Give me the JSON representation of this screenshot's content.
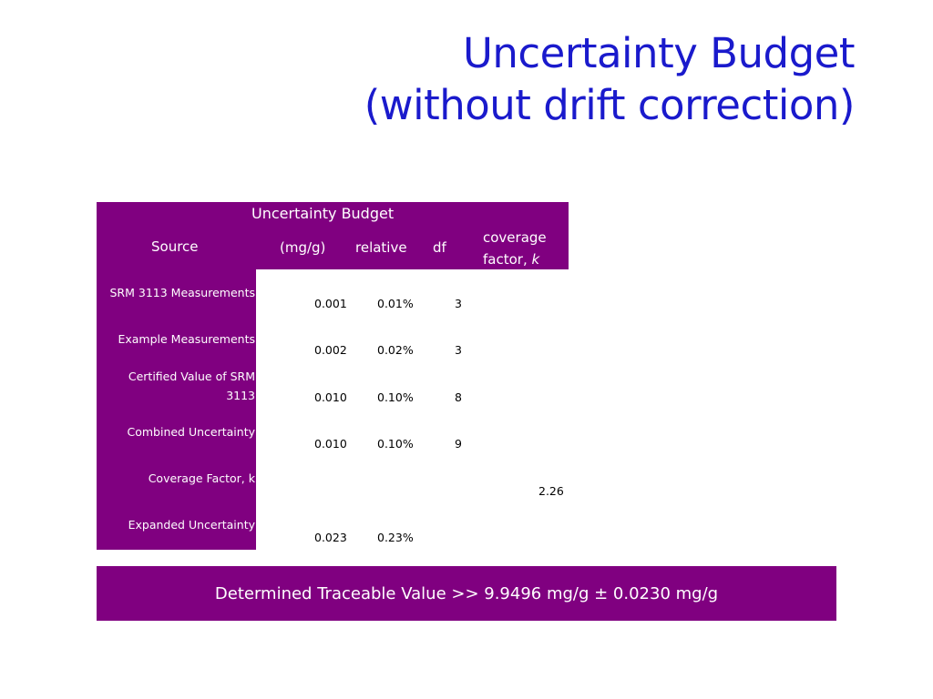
{
  "title": {
    "line1": "Uncertainty Budget",
    "line2": "(without drift correction)"
  },
  "table": {
    "caption": "Uncertainty Budget",
    "headers": {
      "source": "Source",
      "mg_g": "(mg/g)",
      "relative": "relative",
      "df": "df",
      "coverage_line1": "coverage",
      "coverage_line2": "factor, ",
      "coverage_k": "k"
    },
    "rows": [
      {
        "source": "SRM 3113 Measurements",
        "mg_g": "0.001",
        "relative": "0.01%",
        "df": "3",
        "coverage": ""
      },
      {
        "source": "Example Measurements",
        "mg_g": "0.002",
        "relative": "0.02%",
        "df": "3",
        "coverage": ""
      },
      {
        "source": "Certified Value of SRM 3113",
        "mg_g": "0.010",
        "relative": "0.10%",
        "df": "8",
        "coverage": ""
      },
      {
        "source": "Combined Uncertainty",
        "mg_g": "0.010",
        "relative": "0.10%",
        "df": "9",
        "coverage": ""
      },
      {
        "source": "Coverage Factor, k",
        "mg_g": "",
        "relative": "",
        "df": "",
        "coverage": "2.26"
      },
      {
        "source": "Expanded Uncertainty",
        "mg_g": "0.023",
        "relative": "0.23%",
        "df": "",
        "coverage": ""
      }
    ]
  },
  "result": {
    "text": "Determined Traceable Value >> 9.9496 mg/g ± 0.0230 mg/g"
  },
  "colors": {
    "title": "#1a1acc",
    "band": "#800080"
  }
}
